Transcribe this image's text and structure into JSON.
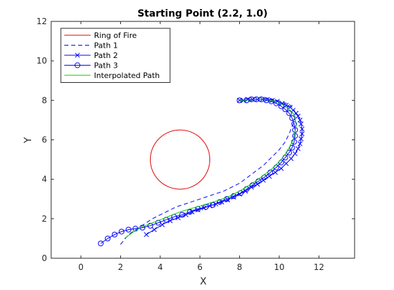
{
  "chart_data": {
    "type": "line",
    "title": "Starting Point (2.2, 1.0)",
    "xlabel": "X",
    "ylabel": "Y",
    "xlim": [
      -1.5,
      13.8
    ],
    "ylim": [
      0,
      12
    ],
    "xticks": [
      "0",
      "2",
      "4",
      "6",
      "8",
      "10",
      "12"
    ],
    "yticks": [
      "0",
      "2",
      "4",
      "6",
      "8",
      "10",
      "12"
    ],
    "grid": false,
    "legend_position": "top-left",
    "ring": {
      "name": "Ring of Fire",
      "center": [
        5.0,
        5.0
      ],
      "radius": 1.5,
      "color": "#e00000"
    },
    "series": [
      {
        "name": "Path 1",
        "style": "dashed",
        "marker": "none",
        "color": "#0000ff",
        "x": [
          2.0,
          2.4,
          3.0,
          3.6,
          4.2,
          4.8,
          5.4,
          6.0,
          6.6,
          7.2,
          7.6,
          8.0,
          8.4,
          8.8,
          9.2,
          9.6,
          10.0,
          10.3,
          10.5,
          10.7,
          10.8,
          10.8,
          10.7,
          10.5,
          10.2,
          9.9,
          9.6,
          9.3,
          9.0,
          8.7,
          8.4,
          8.0
        ],
        "y": [
          0.7,
          1.2,
          1.6,
          2.0,
          2.3,
          2.6,
          2.8,
          3.0,
          3.2,
          3.4,
          3.6,
          3.8,
          4.1,
          4.4,
          4.7,
          5.1,
          5.5,
          5.9,
          6.3,
          6.8,
          7.1,
          7.4,
          7.6,
          7.8,
          7.9,
          8.0,
          8.05,
          8.05,
          8.05,
          8.0,
          8.0,
          8.0
        ]
      },
      {
        "name": "Path 2",
        "style": "solid",
        "marker": "x",
        "color": "#0000ff",
        "x": [
          3.3,
          3.7,
          4.1,
          4.5,
          4.9,
          5.3,
          5.6,
          5.9,
          6.2,
          6.5,
          6.8,
          7.1,
          7.4,
          7.7,
          8.0,
          8.3,
          8.6,
          8.9,
          9.2,
          9.5,
          9.8,
          10.1,
          10.35,
          10.6,
          10.8,
          10.95,
          11.05,
          11.1,
          11.15,
          11.15,
          11.1,
          11.05,
          10.95,
          10.85,
          10.7,
          10.55,
          10.35,
          10.15,
          9.9,
          9.65,
          9.4,
          9.15,
          8.9,
          8.65,
          8.4,
          8.2,
          8.0
        ],
        "y": [
          1.2,
          1.45,
          1.7,
          1.9,
          2.05,
          2.2,
          2.35,
          2.45,
          2.55,
          2.65,
          2.75,
          2.85,
          2.95,
          3.1,
          3.25,
          3.4,
          3.6,
          3.75,
          3.95,
          4.15,
          4.35,
          4.55,
          4.8,
          5.05,
          5.3,
          5.55,
          5.8,
          6.05,
          6.3,
          6.55,
          6.8,
          7.0,
          7.2,
          7.35,
          7.5,
          7.65,
          7.75,
          7.85,
          7.95,
          8.0,
          8.05,
          8.05,
          8.05,
          8.05,
          8.05,
          8.0,
          8.0
        ]
      },
      {
        "name": "Path 3",
        "style": "solid",
        "marker": "o",
        "color": "#0000ff",
        "x": [
          1.0,
          1.35,
          1.7,
          2.05,
          2.4,
          2.75,
          3.1,
          3.5,
          3.9,
          4.3,
          4.7,
          5.1,
          5.5,
          5.9,
          6.3,
          6.65,
          7.0,
          7.35,
          7.7,
          8.05,
          8.35,
          8.65,
          8.95,
          9.25,
          9.55,
          9.85,
          10.1,
          10.3,
          10.5,
          10.65,
          10.75,
          10.8,
          10.8,
          10.75,
          10.65,
          10.5,
          10.3,
          10.1,
          9.85,
          9.6,
          9.35,
          9.1,
          8.85,
          8.6,
          8.35,
          8.0
        ],
        "y": [
          0.75,
          1.0,
          1.2,
          1.35,
          1.45,
          1.5,
          1.55,
          1.65,
          1.8,
          1.95,
          2.1,
          2.2,
          2.35,
          2.5,
          2.6,
          2.7,
          2.85,
          3.0,
          3.15,
          3.3,
          3.5,
          3.7,
          3.9,
          4.1,
          4.35,
          4.6,
          4.85,
          5.1,
          5.35,
          5.6,
          5.9,
          6.2,
          6.5,
          6.8,
          7.1,
          7.35,
          7.55,
          7.7,
          7.85,
          7.95,
          8.0,
          8.05,
          8.05,
          8.05,
          8.0,
          8.0
        ]
      },
      {
        "name": "Interpolated Path",
        "style": "solid",
        "marker": "none",
        "color": "#00cc00",
        "x": [
          2.2,
          2.6,
          3.0,
          3.5,
          4.0,
          4.5,
          5.0,
          5.5,
          6.0,
          6.5,
          7.0,
          7.5,
          8.0,
          8.4,
          8.8,
          9.2,
          9.6,
          9.95,
          10.25,
          10.5,
          10.7,
          10.8,
          10.85,
          10.8,
          10.7,
          10.5,
          10.25,
          9.95,
          9.6,
          9.25,
          8.9,
          8.5,
          8.0
        ],
        "y": [
          1.0,
          1.3,
          1.55,
          1.75,
          1.95,
          2.15,
          2.35,
          2.5,
          2.65,
          2.8,
          2.95,
          3.15,
          3.4,
          3.65,
          3.9,
          4.2,
          4.5,
          4.85,
          5.2,
          5.6,
          6.0,
          6.4,
          6.75,
          7.1,
          7.35,
          7.55,
          7.75,
          7.9,
          8.0,
          8.05,
          8.05,
          8.02,
          8.0
        ]
      }
    ]
  }
}
